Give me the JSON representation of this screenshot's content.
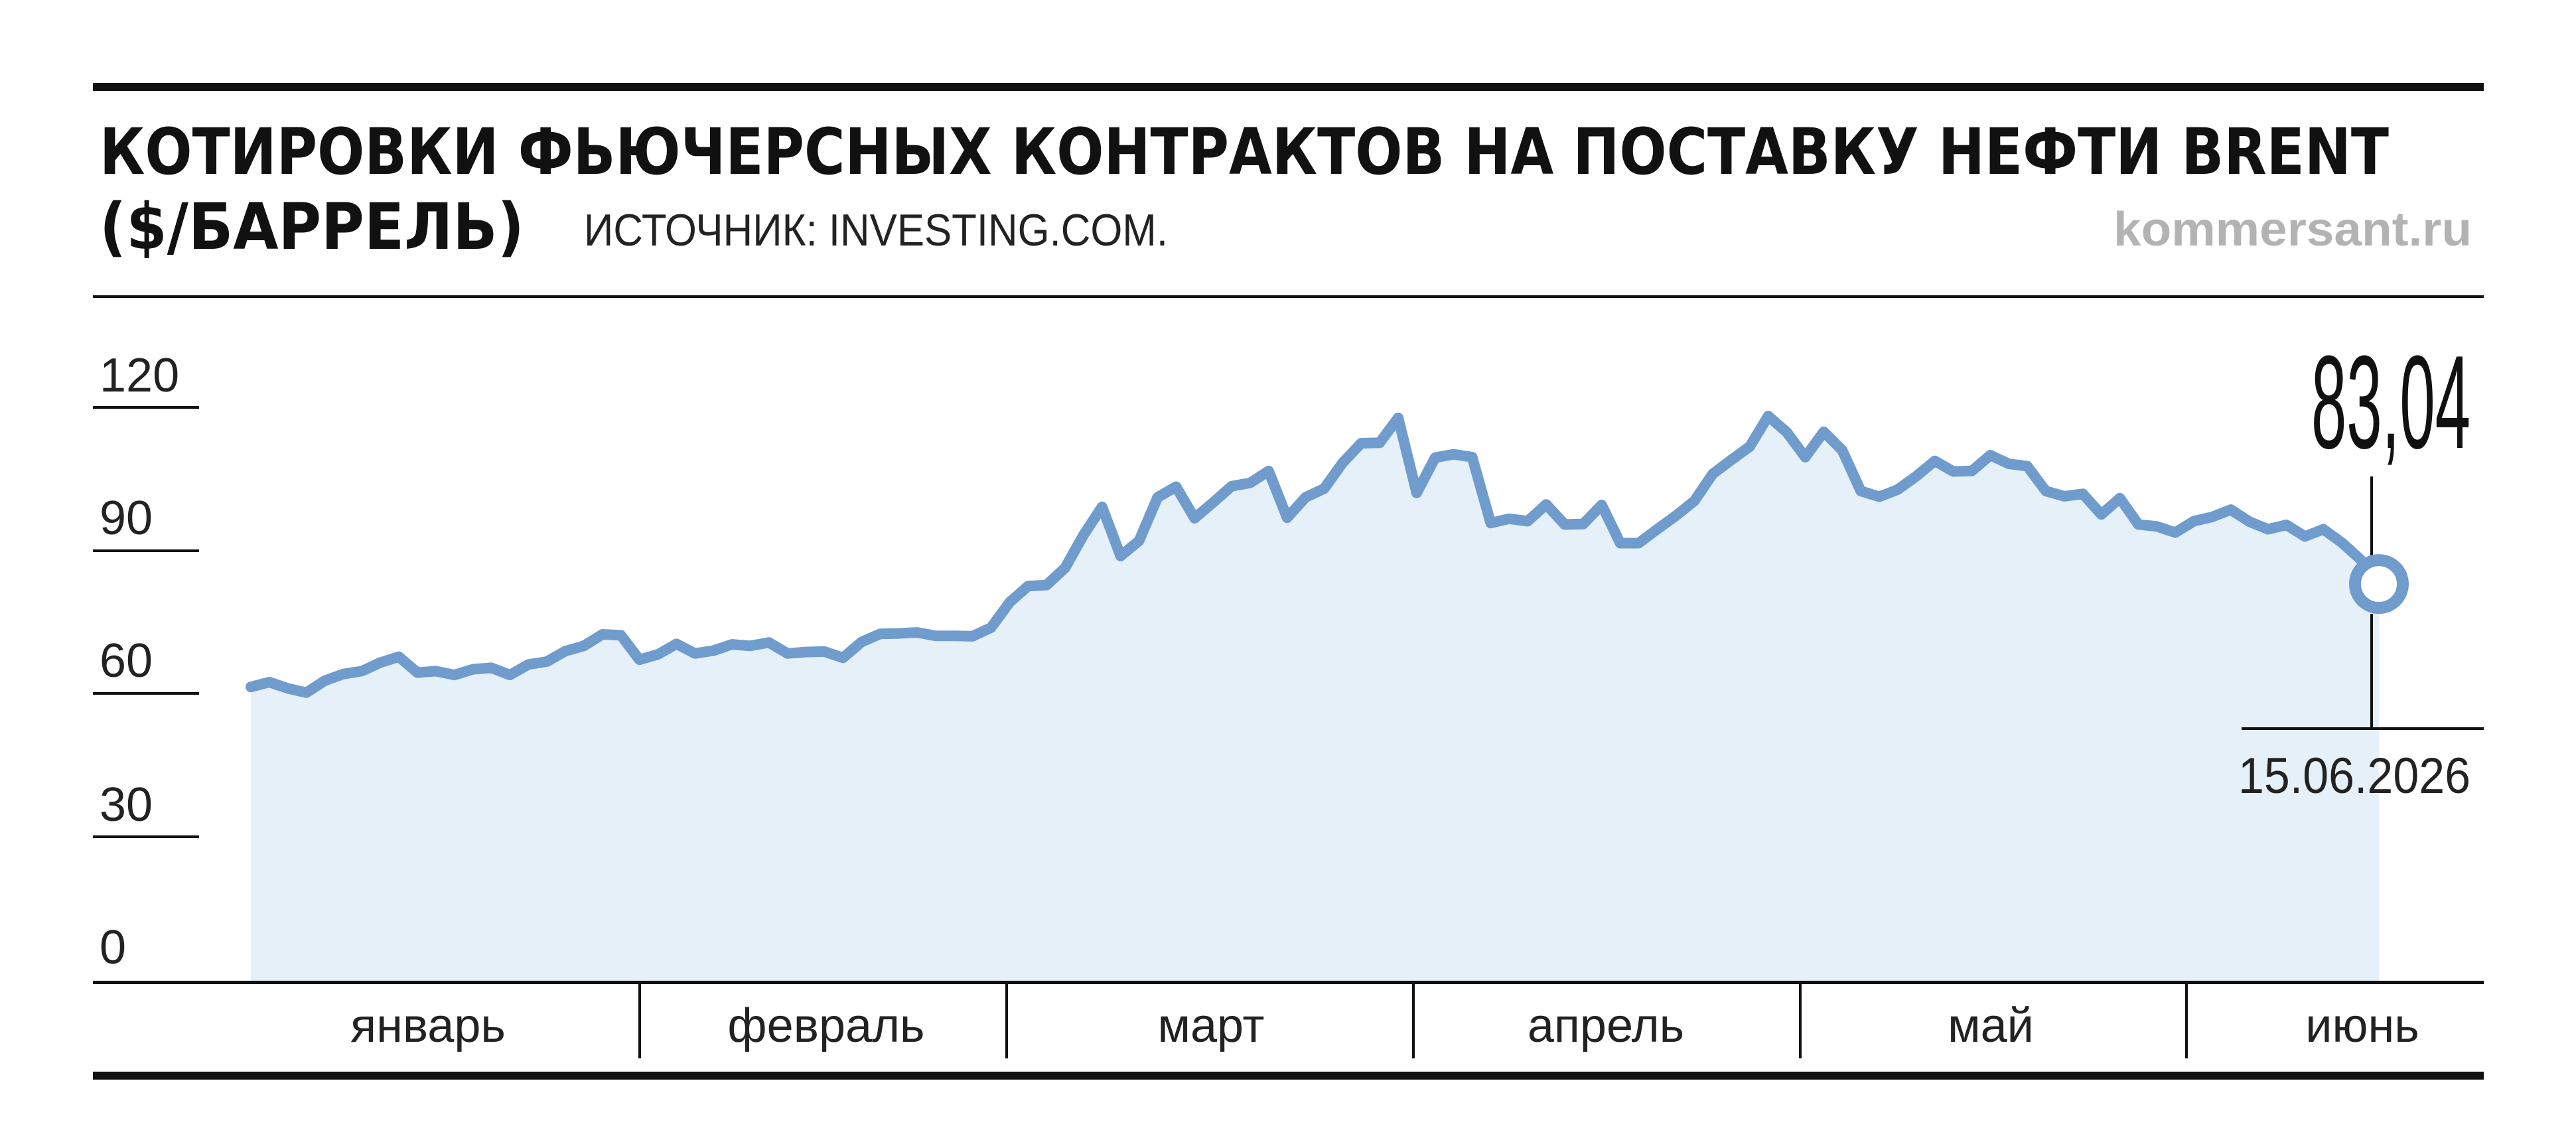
{
  "header": {
    "title_line1": "КОТИРОВКИ ФЬЮЧЕРСНЫХ КОНТРАКТОВ НА ПОСТАВКУ НЕФТИ BRENT",
    "title_line2": "($/БАРРЕЛЬ)",
    "source": "ИСТОЧНИК: INVESTING.COM.",
    "brand": "kommersant.ru"
  },
  "colors": {
    "line": "#6f9ccd",
    "area": "#e6f0f8",
    "rule": "#111111"
  },
  "chart_data": {
    "type": "area",
    "title": "КОТИРОВКИ ФЬЮЧЕРСНЫХ КОНТРАКТОВ НА ПОСТАВКУ НЕФТИ BRENT ($/БАРРЕЛЬ)",
    "ylim": [
      0,
      120
    ],
    "yticks": [
      "0",
      "30",
      "60",
      "90",
      "120"
    ],
    "months": [
      "январь",
      "февраль",
      "март",
      "апрель",
      "май",
      "июнь"
    ],
    "grid": false,
    "last_value": {
      "value": "83,04",
      "date": "15.06.2026"
    },
    "series": [
      {
        "values": [
          61.5,
          62.5,
          61.2,
          60.3,
          62.8,
          64.2,
          64.8,
          66.6,
          67.8,
          64.5,
          64.8,
          64.0,
          65.2,
          65.5,
          64.0,
          66.2,
          66.8,
          69.0,
          70.1,
          72.5,
          72.3,
          67.2,
          68.3,
          70.5,
          68.5,
          69.1,
          70.4,
          70.1,
          70.8,
          68.5,
          68.8,
          68.9,
          67.6,
          70.9,
          72.6,
          72.7,
          72.9,
          72.2,
          72.2,
          72.1,
          73.9,
          79.2,
          82.6,
          82.8,
          86.4,
          93.3,
          99.2,
          88.9,
          92.1,
          101.2,
          103.4,
          96.8,
          100.1,
          103.5,
          104.2,
          106.7,
          96.9,
          101.2,
          103.0,
          108.4,
          112.5,
          112.6,
          117.8,
          102.1,
          109.5,
          110.2,
          109.6,
          95.8,
          96.7,
          96.2,
          99.7,
          95.5,
          95.6,
          99.6,
          91.6,
          91.6,
          94.5,
          97.3,
          100.4,
          106.1,
          109.0,
          111.8,
          118.2,
          114.8,
          109.6,
          114.9,
          111.0,
          102.5,
          101.3,
          102.8,
          105.6,
          108.8,
          106.6,
          106.7,
          110.0,
          108.2,
          107.7,
          102.5,
          101.4,
          101.9,
          97.6,
          101.0,
          95.5,
          95.1,
          93.8,
          96.2,
          97.1,
          98.6,
          96.1,
          94.5,
          95.4,
          93.0,
          94.5,
          91.7,
          88.2,
          83.04
        ]
      }
    ]
  }
}
